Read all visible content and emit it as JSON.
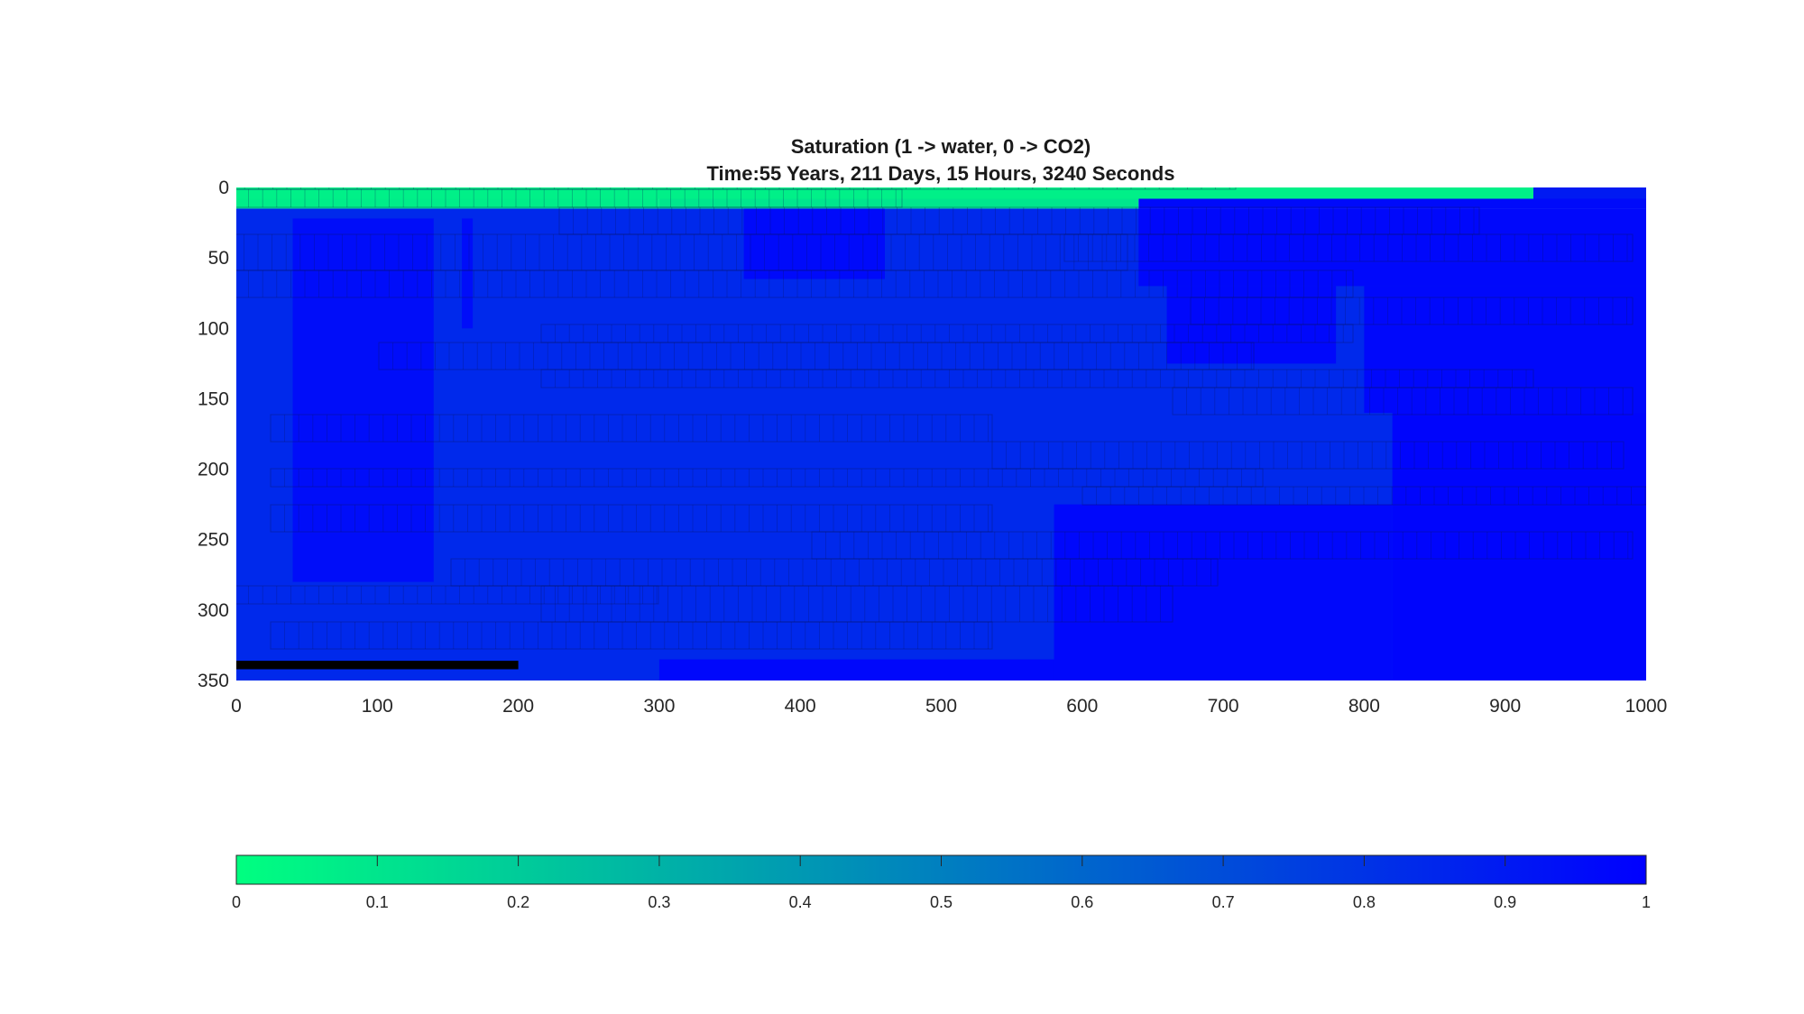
{
  "chart_data": {
    "type": "heatmap",
    "title": "Saturation (1 -> water, 0 -> CO2)",
    "subtitle": "Time:55 Years, 211 Days, 15 Hours, 3240 Seconds",
    "xlabel": "",
    "ylabel": "",
    "xlim": [
      0,
      1000
    ],
    "ylim": [
      0,
      350
    ],
    "y_direction": "reversed",
    "xticks": [
      0,
      100,
      200,
      300,
      400,
      500,
      600,
      700,
      800,
      900,
      1000
    ],
    "yticks": [
      0,
      50,
      100,
      150,
      200,
      250,
      300,
      350
    ],
    "grid": false,
    "colorbar": {
      "placement": "bottom",
      "clim": [
        0,
        1
      ],
      "ticks": [
        0,
        0.1,
        0.2,
        0.3,
        0.4,
        0.5,
        0.6,
        0.7,
        0.8,
        0.9,
        1
      ],
      "tick_labels": [
        "0",
        "0.1",
        "0.2",
        "0.3",
        "0.4",
        "0.5",
        "0.6",
        "0.7",
        "0.8",
        "0.9",
        "1"
      ],
      "colormap": [
        "#00ff80",
        "#0000ff"
      ]
    },
    "regions": [
      {
        "x": [
          0,
          1000
        ],
        "y": [
          0,
          8
        ],
        "value": 0.06
      },
      {
        "x": [
          920,
          1000
        ],
        "y": [
          0,
          8
        ],
        "value": 0.9
      },
      {
        "x": [
          0,
          300
        ],
        "y": [
          8,
          15
        ],
        "value": 0.07
      },
      {
        "x": [
          300,
          640
        ],
        "y": [
          8,
          15
        ],
        "value": 0.1
      },
      {
        "x": [
          640,
          1000
        ],
        "y": [
          8,
          15
        ],
        "value": 0.96
      },
      {
        "x": [
          0,
          1000
        ],
        "y": [
          15,
          350
        ],
        "value": 0.84
      },
      {
        "x": [
          40,
          140
        ],
        "y": [
          22,
          280
        ],
        "value": 0.95
      },
      {
        "x": [
          160,
          160
        ],
        "y": [
          22,
          100
        ],
        "value": 0.95
      },
      {
        "x": [
          360,
          460
        ],
        "y": [
          15,
          65
        ],
        "value": 0.96
      },
      {
        "x": [
          640,
          1000
        ],
        "y": [
          15,
          70
        ],
        "value": 0.97
      },
      {
        "x": [
          660,
          780
        ],
        "y": [
          70,
          125
        ],
        "value": 0.97
      },
      {
        "x": [
          800,
          1000
        ],
        "y": [
          70,
          160
        ],
        "value": 0.97
      },
      {
        "x": [
          820,
          1000
        ],
        "y": [
          160,
          350
        ],
        "value": 0.98
      },
      {
        "x": [
          580,
          820
        ],
        "y": [
          225,
          350
        ],
        "value": 0.97
      },
      {
        "x": [
          300,
          580
        ],
        "y": [
          335,
          350
        ],
        "value": 0.97
      }
    ],
    "well": {
      "x": [
        0,
        200
      ],
      "y": [
        336,
        342
      ]
    },
    "annotations": []
  },
  "axes": {
    "x_tick_labels": [
      "0",
      "100",
      "200",
      "300",
      "400",
      "500",
      "600",
      "700",
      "800",
      "900",
      "1000"
    ],
    "y_tick_labels": [
      "0",
      "50",
      "100",
      "150",
      "200",
      "250",
      "300",
      "350"
    ]
  },
  "colors": {
    "co2": "#00ff80",
    "water": "#0000ff",
    "mid_field": "#0633e6",
    "well": "#000000",
    "axis": "#262626"
  }
}
